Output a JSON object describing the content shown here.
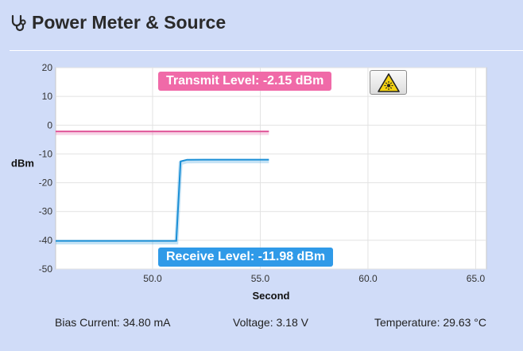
{
  "header": {
    "title": "Power Meter & Source"
  },
  "labels": {
    "transmit": "Transmit Level: -2.15 dBm",
    "receive": "Receive Level: -11.98 dBm"
  },
  "footer": {
    "bias": "Bias Current: 34.80 mA",
    "voltage": "Voltage: 3.18 V",
    "temperature": "Temperature: 29.63 °C"
  },
  "colors": {
    "background": "#d0dcf8",
    "transmit": "#e0569a",
    "receive": "#1a8fd6",
    "transmit_label": "#f06aa8",
    "receive_label": "#2f9ae8"
  },
  "icons": {
    "header": "stethoscope-icon",
    "laser_button": "laser-warning-icon"
  },
  "chart_data": {
    "type": "line",
    "xlabel": "Second",
    "ylabel": "dBm",
    "xlim": [
      45.5,
      65.5
    ],
    "ylim": [
      -50,
      20
    ],
    "xticks": [
      50.0,
      55.0,
      60.0,
      65.0
    ],
    "xtick_labels": [
      "50.0",
      "55.0",
      "60.0",
      "65.0"
    ],
    "yticks": [
      20,
      10,
      0,
      -10,
      -20,
      -30,
      -40,
      -50
    ],
    "ytick_labels": [
      "20",
      "10",
      "0",
      "-10",
      "-20",
      "-30",
      "-40",
      "-50"
    ],
    "grid": true,
    "series": [
      {
        "key": "transmit",
        "x": [
          45.5,
          55.4
        ],
        "y": [
          -2.15,
          -2.15
        ]
      },
      {
        "key": "receive",
        "x": [
          45.5,
          51.1,
          51.3,
          51.6,
          55.4
        ],
        "y": [
          -40.2,
          -40.2,
          -12.6,
          -12.0,
          -11.98
        ]
      }
    ]
  }
}
